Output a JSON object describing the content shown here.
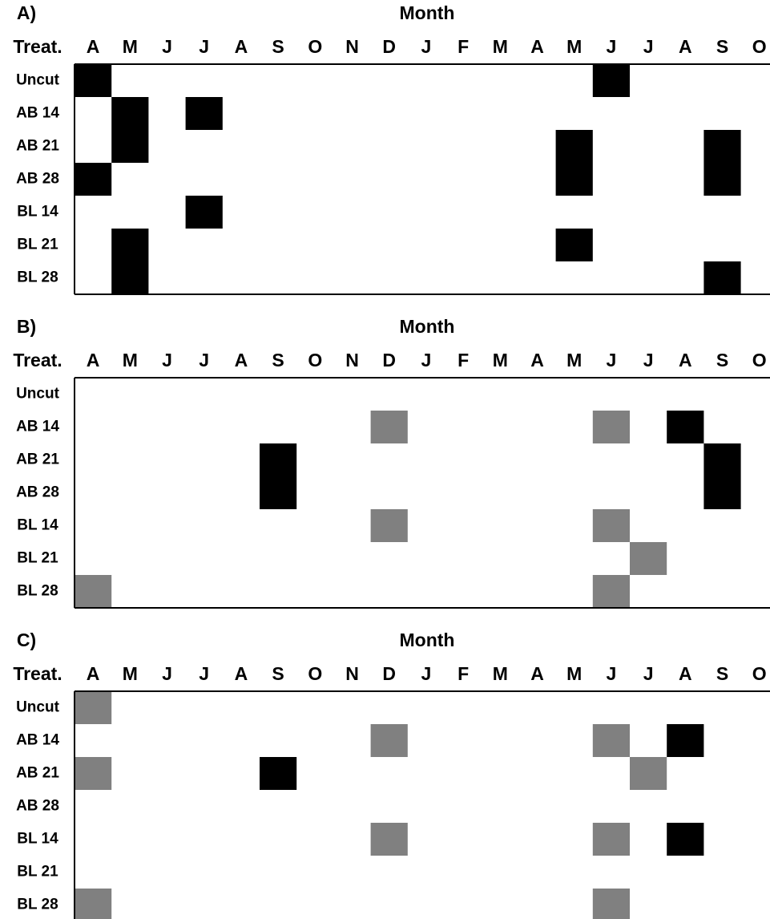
{
  "row_header": "Treat.",
  "months": [
    "A",
    "M",
    "J",
    "J",
    "A",
    "S",
    "O",
    "N",
    "D",
    "J",
    "F",
    "M",
    "A",
    "M",
    "J",
    "J",
    "A",
    "S",
    "O"
  ],
  "rows": [
    "Uncut",
    "AB 14",
    "AB 21",
    "AB 28",
    "BL 14",
    "BL 21",
    "BL 28"
  ],
  "panels": [
    {
      "label": "A)",
      "title": "Month",
      "cells": [
        {
          "row": 0,
          "col": 0,
          "color": "#000000"
        },
        {
          "row": 0,
          "col": 14,
          "color": "#000000"
        },
        {
          "row": 1,
          "col": 1,
          "color": "#000000"
        },
        {
          "row": 1,
          "col": 3,
          "color": "#000000"
        },
        {
          "row": 2,
          "col": 1,
          "color": "#000000"
        },
        {
          "row": 2,
          "col": 13,
          "color": "#000000"
        },
        {
          "row": 2,
          "col": 17,
          "color": "#000000"
        },
        {
          "row": 3,
          "col": 0,
          "color": "#000000"
        },
        {
          "row": 3,
          "col": 13,
          "color": "#000000"
        },
        {
          "row": 3,
          "col": 17,
          "color": "#000000"
        },
        {
          "row": 4,
          "col": 3,
          "color": "#000000"
        },
        {
          "row": 5,
          "col": 1,
          "color": "#000000"
        },
        {
          "row": 5,
          "col": 13,
          "color": "#000000"
        },
        {
          "row": 6,
          "col": 1,
          "color": "#000000"
        },
        {
          "row": 6,
          "col": 17,
          "color": "#000000"
        }
      ]
    },
    {
      "label": "B)",
      "title": "Month",
      "cells": [
        {
          "row": 1,
          "col": 8,
          "color": "#808080"
        },
        {
          "row": 1,
          "col": 14,
          "color": "#808080"
        },
        {
          "row": 1,
          "col": 16,
          "color": "#000000"
        },
        {
          "row": 2,
          "col": 5,
          "color": "#000000"
        },
        {
          "row": 2,
          "col": 17,
          "color": "#000000"
        },
        {
          "row": 3,
          "col": 5,
          "color": "#000000"
        },
        {
          "row": 3,
          "col": 17,
          "color": "#000000"
        },
        {
          "row": 4,
          "col": 8,
          "color": "#808080"
        },
        {
          "row": 4,
          "col": 14,
          "color": "#808080"
        },
        {
          "row": 5,
          "col": 15,
          "color": "#808080"
        },
        {
          "row": 6,
          "col": 0,
          "color": "#808080"
        },
        {
          "row": 6,
          "col": 14,
          "color": "#808080"
        }
      ]
    },
    {
      "label": "C)",
      "title": "Month",
      "cells": [
        {
          "row": 0,
          "col": 0,
          "color": "#808080"
        },
        {
          "row": 1,
          "col": 8,
          "color": "#808080"
        },
        {
          "row": 1,
          "col": 14,
          "color": "#808080"
        },
        {
          "row": 1,
          "col": 16,
          "color": "#000000"
        },
        {
          "row": 2,
          "col": 0,
          "color": "#808080"
        },
        {
          "row": 2,
          "col": 5,
          "color": "#000000"
        },
        {
          "row": 2,
          "col": 15,
          "color": "#808080"
        },
        {
          "row": 4,
          "col": 8,
          "color": "#808080"
        },
        {
          "row": 4,
          "col": 14,
          "color": "#808080"
        },
        {
          "row": 4,
          "col": 16,
          "color": "#000000"
        },
        {
          "row": 6,
          "col": 0,
          "color": "#808080"
        },
        {
          "row": 6,
          "col": 14,
          "color": "#808080"
        }
      ]
    }
  ]
}
